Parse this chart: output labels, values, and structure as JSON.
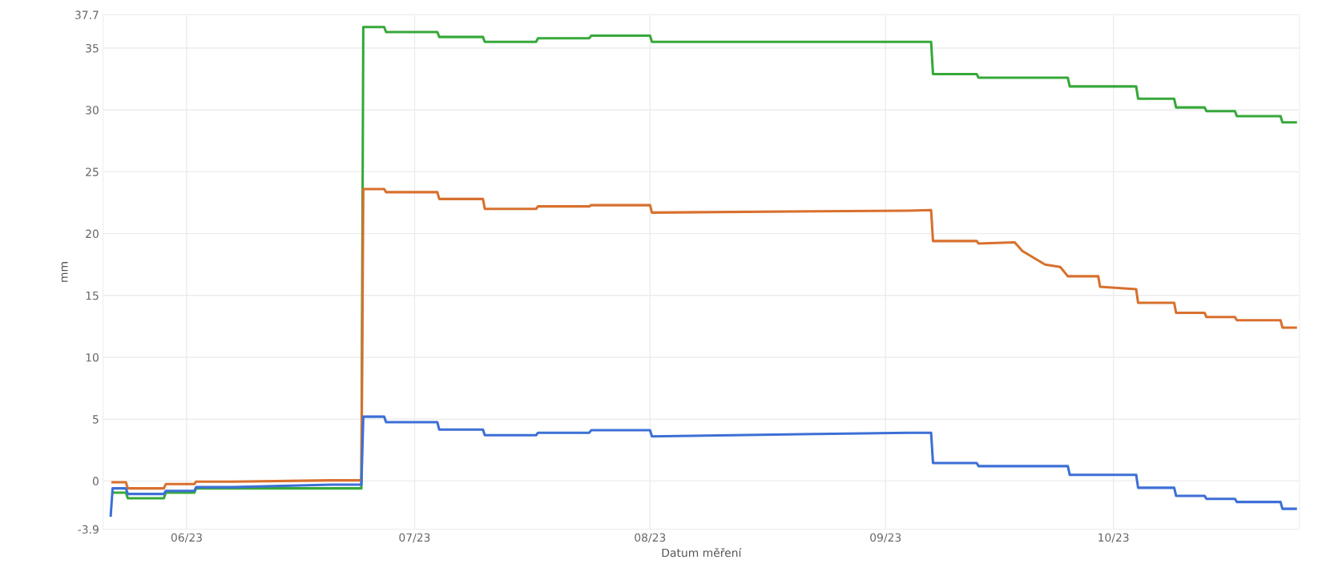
{
  "chart_data": {
    "type": "line",
    "xlabel": "Datum měření",
    "ylabel": "mm",
    "xlim": [
      "2023-05-21",
      "2023-10-25T12:00"
    ],
    "xticks": [
      {
        "value": "2023-06-01",
        "label": "06/23"
      },
      {
        "value": "2023-07-01",
        "label": "07/23"
      },
      {
        "value": "2023-08-01",
        "label": "08/23"
      },
      {
        "value": "2023-09-01",
        "label": "09/23"
      },
      {
        "value": "2023-10-01",
        "label": "10/23"
      }
    ],
    "ylim": [
      -3.9,
      37.7
    ],
    "yticks": [
      -3.9,
      0,
      5,
      10,
      15,
      20,
      25,
      30,
      35,
      37.7
    ],
    "grid": true,
    "line_style": "solid",
    "marker": "none",
    "series": [
      {
        "color": "#37a83a",
        "x": [
          "2023-05-22T06:00",
          "2023-05-24T00:00",
          "2023-05-24T06:00",
          "2023-05-29T00:00",
          "2023-05-29T06:00",
          "2023-06-02T00:00",
          "2023-06-02T06:00",
          "2023-06-07T00:00",
          "2023-06-20T00:00",
          "2023-06-24T00:00",
          "2023-06-24T06:00",
          "2023-06-27T00:00",
          "2023-06-27T06:00",
          "2023-07-04T00:00",
          "2023-07-04T06:00",
          "2023-07-10T00:00",
          "2023-07-10T06:00",
          "2023-07-17T00:00",
          "2023-07-17T06:00",
          "2023-07-24T00:00",
          "2023-07-24T06:00",
          "2023-08-01T00:00",
          "2023-08-01T06:00",
          "2023-08-23T00:00",
          "2023-09-04T00:00",
          "2023-09-07T00:00",
          "2023-09-07T06:00",
          "2023-09-13T00:00",
          "2023-09-13T06:00",
          "2023-09-25T00:00",
          "2023-09-25T06:00",
          "2023-10-04T00:00",
          "2023-10-04T06:00",
          "2023-10-09T00:00",
          "2023-10-09T06:00",
          "2023-10-13T00:00",
          "2023-10-13T06:00",
          "2023-10-17T00:00",
          "2023-10-17T06:00",
          "2023-10-23T00:00",
          "2023-10-23T06:00",
          "2023-10-25T00:00"
        ],
        "values": [
          -0.95,
          -0.95,
          -1.4,
          -1.4,
          -0.95,
          -0.95,
          -0.6,
          -0.6,
          -0.6,
          -0.6,
          36.7,
          36.7,
          36.3,
          36.3,
          35.9,
          35.9,
          35.5,
          35.5,
          35.8,
          35.8,
          36.0,
          36.0,
          35.5,
          35.5,
          35.5,
          35.5,
          32.9,
          32.9,
          32.6,
          32.6,
          31.9,
          31.9,
          30.9,
          30.9,
          30.2,
          30.2,
          29.9,
          29.9,
          29.5,
          29.5,
          29.0,
          29.0
        ]
      },
      {
        "color": "#d8702e",
        "x": [
          "2023-05-22T06:00",
          "2023-05-24T00:00",
          "2023-05-24T06:00",
          "2023-05-29T00:00",
          "2023-05-29T06:00",
          "2023-06-02T00:00",
          "2023-06-02T06:00",
          "2023-06-07T00:00",
          "2023-06-20T00:00",
          "2023-06-24T00:00",
          "2023-06-24T06:00",
          "2023-06-27T00:00",
          "2023-06-27T06:00",
          "2023-07-04T00:00",
          "2023-07-04T06:00",
          "2023-07-10T00:00",
          "2023-07-10T06:00",
          "2023-07-17T00:00",
          "2023-07-17T06:00",
          "2023-07-24T00:00",
          "2023-07-24T06:00",
          "2023-08-01T00:00",
          "2023-08-01T06:00",
          "2023-08-23T00:00",
          "2023-09-04T00:00",
          "2023-09-07T00:00",
          "2023-09-07T06:00",
          "2023-09-13T00:00",
          "2023-09-13T06:00",
          "2023-09-18T00:00",
          "2023-09-19T00:00",
          "2023-09-22T00:00",
          "2023-09-24T00:00",
          "2023-09-25T00:00",
          "2023-09-29T00:00",
          "2023-09-29T06:00",
          "2023-10-04T00:00",
          "2023-10-04T06:00",
          "2023-10-09T00:00",
          "2023-10-09T06:00",
          "2023-10-13T00:00",
          "2023-10-13T06:00",
          "2023-10-17T00:00",
          "2023-10-17T06:00",
          "2023-10-23T00:00",
          "2023-10-23T06:00",
          "2023-10-25T00:00"
        ],
        "values": [
          -0.1,
          -0.1,
          -0.6,
          -0.6,
          -0.25,
          -0.25,
          -0.05,
          -0.05,
          0.05,
          0.05,
          23.6,
          23.6,
          23.35,
          23.35,
          22.8,
          22.8,
          22.0,
          22.0,
          22.2,
          22.2,
          22.3,
          22.3,
          21.7,
          21.8,
          21.85,
          21.9,
          19.4,
          19.4,
          19.2,
          19.3,
          18.6,
          17.5,
          17.3,
          16.55,
          16.55,
          15.7,
          15.5,
          14.4,
          14.4,
          13.6,
          13.6,
          13.25,
          13.25,
          13.0,
          13.0,
          12.4,
          12.4
        ]
      },
      {
        "color": "#3d6fd6",
        "x": [
          "2023-05-22T00:00",
          "2023-05-22T06:00",
          "2023-05-24T00:00",
          "2023-05-24T06:00",
          "2023-05-29T00:00",
          "2023-05-29T06:00",
          "2023-06-02T00:00",
          "2023-06-02T06:00",
          "2023-06-07T00:00",
          "2023-06-20T00:00",
          "2023-06-24T00:00",
          "2023-06-24T06:00",
          "2023-06-27T00:00",
          "2023-06-27T06:00",
          "2023-07-04T00:00",
          "2023-07-04T06:00",
          "2023-07-10T00:00",
          "2023-07-10T06:00",
          "2023-07-17T00:00",
          "2023-07-17T06:00",
          "2023-07-24T00:00",
          "2023-07-24T06:00",
          "2023-08-01T00:00",
          "2023-08-01T06:00",
          "2023-08-23T00:00",
          "2023-09-04T00:00",
          "2023-09-07T00:00",
          "2023-09-07T06:00",
          "2023-09-13T00:00",
          "2023-09-13T06:00",
          "2023-09-25T00:00",
          "2023-09-25T06:00",
          "2023-10-04T00:00",
          "2023-10-04T06:00",
          "2023-10-09T00:00",
          "2023-10-09T06:00",
          "2023-10-13T00:00",
          "2023-10-13T06:00",
          "2023-10-17T00:00",
          "2023-10-17T06:00",
          "2023-10-23T00:00",
          "2023-10-23T06:00",
          "2023-10-25T00:00"
        ],
        "values": [
          -2.8,
          -0.6,
          -0.6,
          -1.05,
          -1.05,
          -0.8,
          -0.8,
          -0.5,
          -0.5,
          -0.3,
          -0.3,
          5.2,
          5.2,
          4.75,
          4.75,
          4.15,
          4.15,
          3.7,
          3.7,
          3.9,
          3.9,
          4.1,
          4.1,
          3.6,
          3.8,
          3.9,
          3.9,
          1.45,
          1.45,
          1.2,
          1.2,
          0.5,
          0.5,
          -0.55,
          -0.55,
          -1.2,
          -1.2,
          -1.45,
          -1.45,
          -1.7,
          -1.7,
          -2.25,
          -2.25
        ]
      }
    ]
  }
}
